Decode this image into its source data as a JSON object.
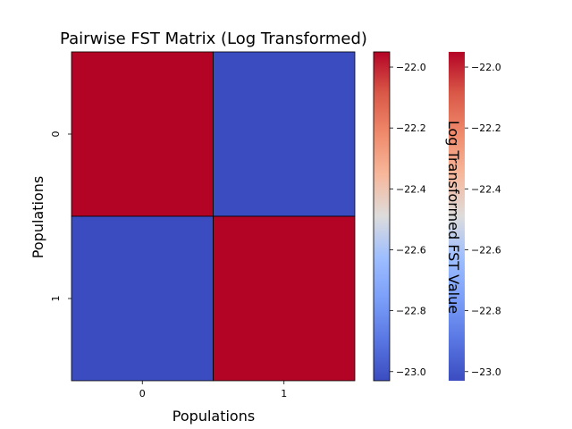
{
  "chart_data": {
    "type": "heatmap",
    "title": "Pairwise FST Matrix (Log Transformed)",
    "xlabel": "Populations",
    "ylabel": "Populations",
    "x_categories": [
      "0",
      "1"
    ],
    "y_categories": [
      "0",
      "1"
    ],
    "values": [
      [
        -21.95,
        -23.03
      ],
      [
        -23.03,
        -21.95
      ]
    ],
    "colormap": "coolwarm",
    "low_color": "#3b4cc0",
    "high_color": "#b40426",
    "vmin": -23.03,
    "vmax": -21.95,
    "colorbars": [
      {
        "label": "",
        "ticks": [
          "−22.0",
          "−22.2",
          "−22.4",
          "−22.6",
          "−22.8",
          "−23.0"
        ],
        "tick_values": [
          -22.0,
          -22.2,
          -22.4,
          -22.6,
          -22.8,
          -23.0
        ]
      },
      {
        "label": "Log Transformed FST Value",
        "ticks": [
          "−22.0",
          "−22.2",
          "−22.4",
          "−22.6",
          "−22.8",
          "−23.0"
        ],
        "tick_values": [
          -22.0,
          -22.2,
          -22.4,
          -22.6,
          -22.8,
          -23.0
        ]
      }
    ]
  }
}
